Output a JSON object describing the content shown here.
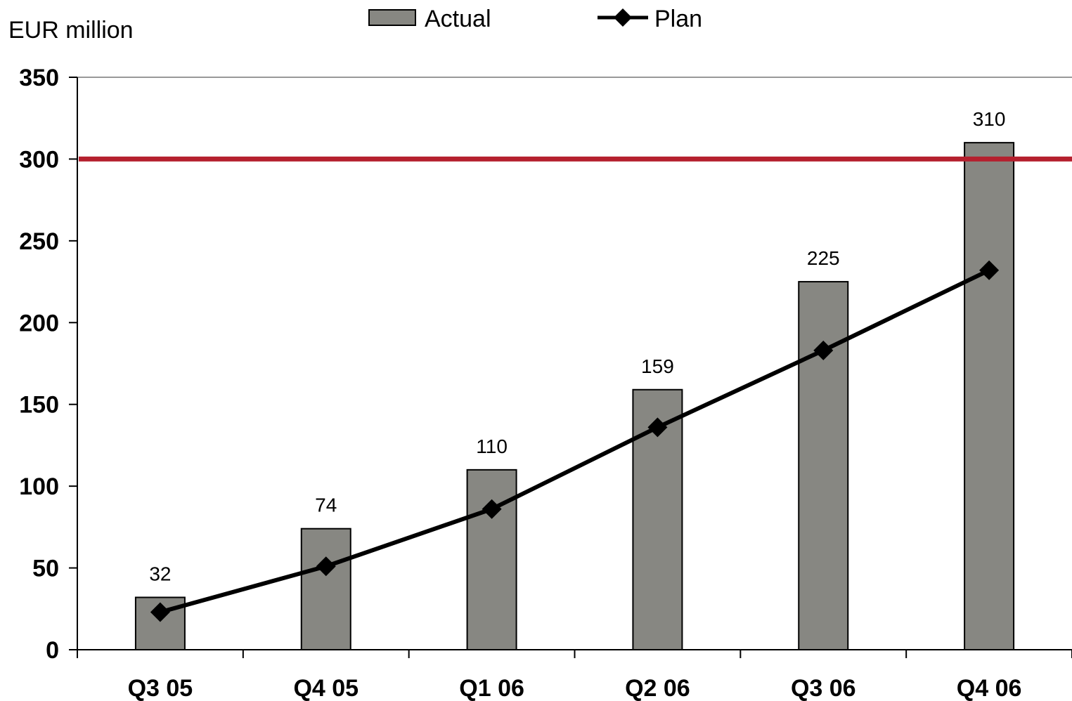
{
  "chart_data": {
    "type": "bar",
    "unit_label": "EUR million",
    "categories": [
      "Q3 05",
      "Q4 05",
      "Q1 06",
      "Q2 06",
      "Q3 06",
      "Q4 06"
    ],
    "series": [
      {
        "name": "Actual",
        "kind": "bar",
        "color": "#878782",
        "values": [
          32,
          74,
          110,
          159,
          225,
          310
        ],
        "labels": [
          "32",
          "74",
          "110",
          "159",
          "225",
          "310"
        ]
      },
      {
        "name": "Plan",
        "kind": "line",
        "marker": "diamond",
        "color": "#000000",
        "values": [
          23,
          51,
          86,
          136,
          183,
          232
        ]
      }
    ],
    "reference_line": {
      "value": 300,
      "color": "#b5202e"
    },
    "ylim": [
      0,
      350
    ],
    "yticks": [
      "0",
      "50",
      "100",
      "150",
      "200",
      "250",
      "300",
      "350"
    ],
    "ytick_values": [
      0,
      50,
      100,
      150,
      200,
      250,
      300,
      350
    ],
    "grid": false,
    "legend": "top-center"
  }
}
